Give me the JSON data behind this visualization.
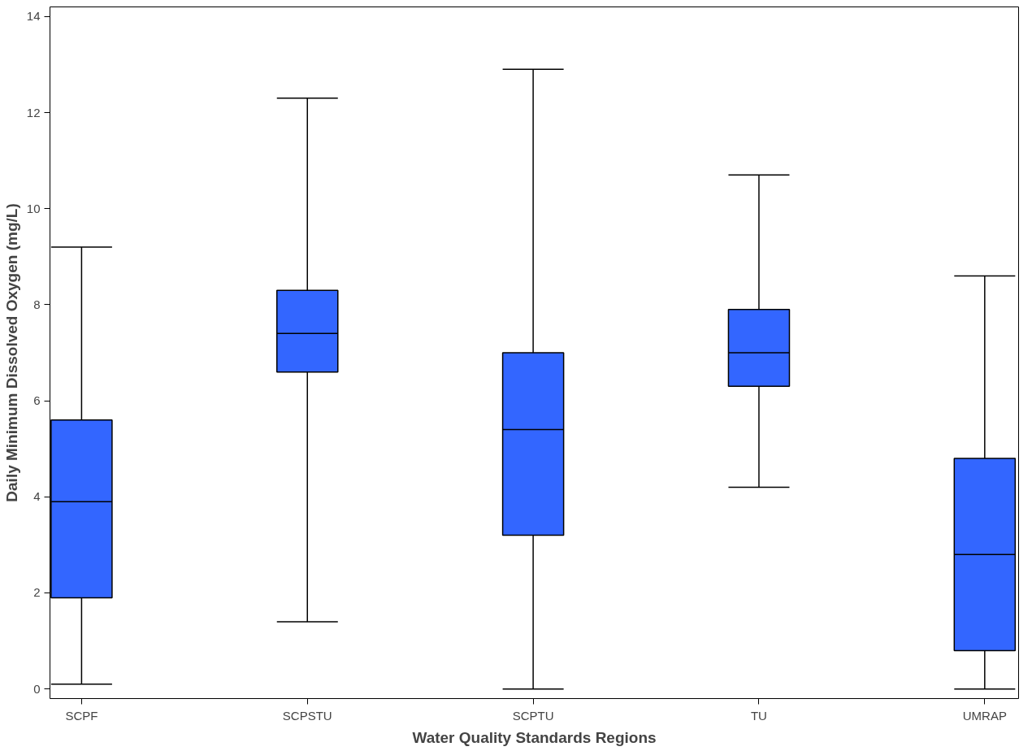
{
  "chart_data": {
    "type": "box",
    "xlabel": "Water Quality Standards Regions",
    "ylabel": "Daily Minimum Dissolved Oxygen (mg/L)",
    "categories": [
      "SCPF",
      "SCPSTU",
      "SCPTU",
      "TU",
      "UMRAP"
    ],
    "color": "#3366ff",
    "boxes": [
      {
        "low": 0.1,
        "q1": 1.9,
        "median": 3.9,
        "q3": 5.6,
        "high": 9.2
      },
      {
        "low": 1.4,
        "q1": 6.6,
        "median": 7.4,
        "q3": 8.3,
        "high": 12.3
      },
      {
        "low": 0.0,
        "q1": 3.2,
        "median": 5.4,
        "q3": 7.0,
        "high": 12.9
      },
      {
        "low": 4.2,
        "q1": 6.3,
        "median": 7.0,
        "q3": 7.9,
        "high": 10.7
      },
      {
        "low": 0.0,
        "q1": 0.8,
        "median": 2.8,
        "q3": 4.8,
        "high": 8.6
      }
    ],
    "ylim": [
      -0.2,
      14.2
    ],
    "yticks": [
      0,
      2,
      4,
      6,
      8,
      10,
      12,
      14
    ],
    "grid": false
  }
}
